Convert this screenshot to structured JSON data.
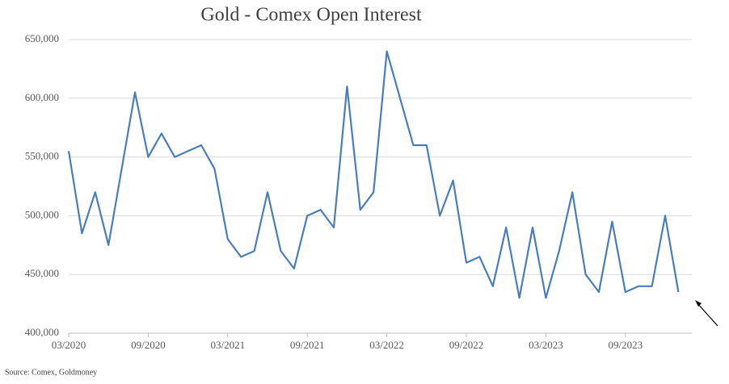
{
  "chart_data": {
    "type": "line",
    "title": "Gold - Comex Open Interest",
    "source": "Source: Comex, Goldmoney",
    "x": [
      "03/2020",
      "04/2020",
      "05/2020",
      "06/2020",
      "07/2020",
      "08/2020",
      "09/2020",
      "10/2020",
      "11/2020",
      "12/2020",
      "01/2021",
      "02/2021",
      "03/2021",
      "04/2021",
      "05/2021",
      "06/2021",
      "07/2021",
      "08/2021",
      "09/2021",
      "10/2021",
      "11/2021",
      "12/2021",
      "01/2022",
      "02/2022",
      "03/2022",
      "04/2022",
      "05/2022",
      "06/2022",
      "07/2022",
      "08/2022",
      "09/2022",
      "10/2022",
      "11/2022",
      "12/2022",
      "01/2023",
      "02/2023",
      "03/2023",
      "04/2023",
      "05/2023",
      "06/2023",
      "07/2023",
      "08/2023",
      "09/2023",
      "10/2023",
      "11/2023",
      "12/2023",
      "01/2024"
    ],
    "series": [
      {
        "name": "Open Interest",
        "color": "#4a7ebb",
        "values": [
          555000,
          485000,
          520000,
          475000,
          540000,
          605000,
          550000,
          570000,
          550000,
          555000,
          560000,
          540000,
          480000,
          465000,
          470000,
          520000,
          470000,
          455000,
          500000,
          505000,
          490000,
          610000,
          505000,
          520000,
          640000,
          600000,
          560000,
          560000,
          500000,
          530000,
          460000,
          465000,
          440000,
          490000,
          430000,
          490000,
          430000,
          470000,
          520000,
          450000,
          435000,
          495000,
          435000,
          440000,
          440000,
          500000,
          435000
        ]
      }
    ],
    "xticks": [
      "03/2020",
      "09/2020",
      "03/2021",
      "09/2021",
      "03/2022",
      "09/2022",
      "03/2023",
      "09/2023"
    ],
    "ylim": [
      400000,
      650000
    ],
    "yticks": [
      {
        "value": 400000,
        "label": "400,000"
      },
      {
        "value": 450000,
        "label": "450,000"
      },
      {
        "value": 500000,
        "label": "500,000"
      },
      {
        "value": 550000,
        "label": "550,000"
      },
      {
        "value": 600000,
        "label": "600,000"
      },
      {
        "value": 650000,
        "label": "650,000"
      }
    ],
    "grid": true
  }
}
